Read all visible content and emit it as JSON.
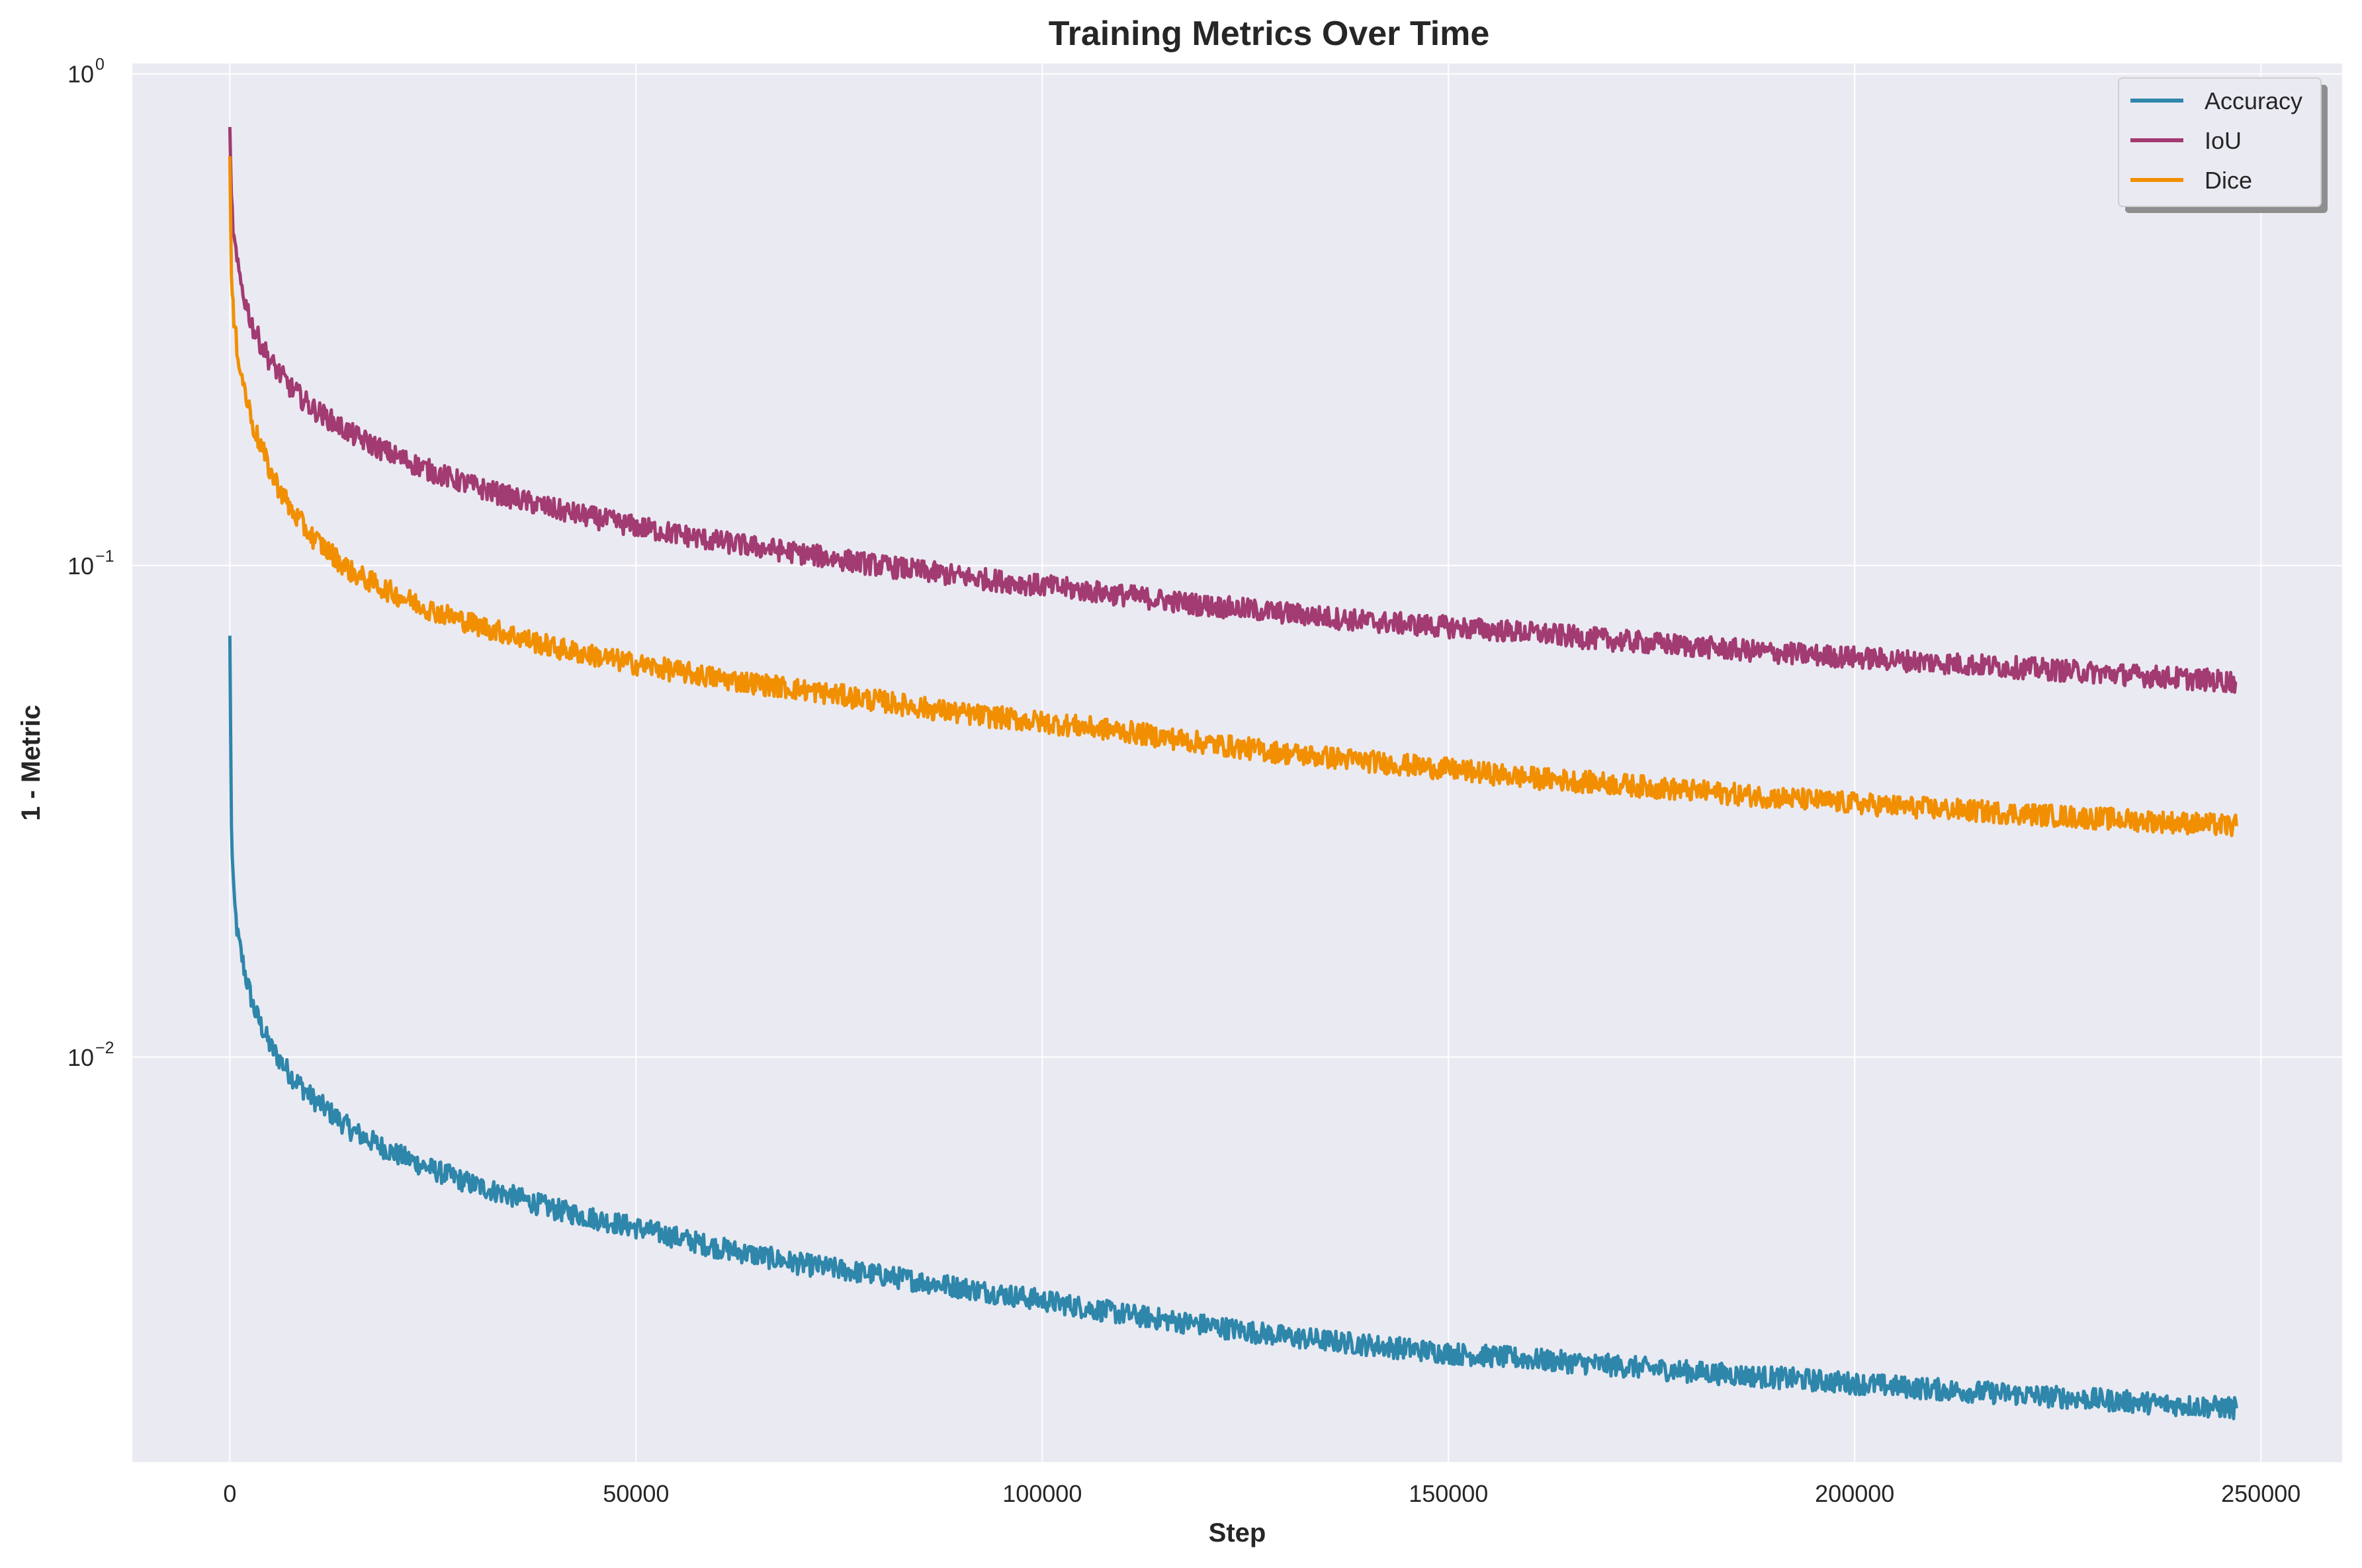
{
  "chart_data": {
    "type": "line",
    "title": "Training Metrics Over Time",
    "xlabel": "Step",
    "ylabel": "1 - Metric",
    "xlim": [
      -12000,
      260000
    ],
    "ylim": [
      0.0015,
      1.05
    ],
    "y_scale": "log",
    "grid": true,
    "legend_position": "top-right",
    "x_ticks": [
      {
        "value": 0,
        "label": "0"
      },
      {
        "value": 50000,
        "label": "50000"
      },
      {
        "value": 100000,
        "label": "100000"
      },
      {
        "value": 150000,
        "label": "150000"
      },
      {
        "value": 200000,
        "label": "200000"
      },
      {
        "value": 250000,
        "label": "250000"
      }
    ],
    "y_ticks": [
      {
        "value": 1,
        "base": "10",
        "exp": "0"
      },
      {
        "value": 0.1,
        "base": "10",
        "exp": "−1"
      },
      {
        "value": 0.01,
        "base": "10",
        "exp": "−2"
      }
    ],
    "series": [
      {
        "name": "Accuracy",
        "color": "#2E86AB",
        "x": [
          0,
          200,
          500,
          1000,
          2000,
          3000,
          5000,
          7500,
          10000,
          15000,
          20000,
          25000,
          30000,
          35000,
          40000,
          50000,
          60000,
          70000,
          80000,
          90000,
          100000,
          110000,
          120000,
          130000,
          140000,
          150000,
          160000,
          170000,
          180000,
          190000,
          200000,
          210000,
          220000,
          230000,
          240000,
          247000
        ],
        "y": [
          0.072,
          0.029,
          0.021,
          0.0175,
          0.0145,
          0.0125,
          0.0105,
          0.0092,
          0.0083,
          0.0071,
          0.0064,
          0.0059,
          0.0055,
          0.0052,
          0.0049,
          0.0045,
          0.0041,
          0.0038,
          0.0036,
          0.0034,
          0.0032,
          0.003,
          0.00285,
          0.0027,
          0.0026,
          0.0025,
          0.00243,
          0.00236,
          0.00229,
          0.00223,
          0.00217,
          0.00211,
          0.00206,
          0.00201,
          0.00196,
          0.00193
        ]
      },
      {
        "name": "IoU",
        "color": "#A23B72",
        "x": [
          0,
          200,
          500,
          1000,
          2000,
          3000,
          5000,
          7500,
          10000,
          15000,
          20000,
          25000,
          30000,
          35000,
          40000,
          50000,
          60000,
          70000,
          80000,
          90000,
          100000,
          110000,
          120000,
          130000,
          140000,
          150000,
          160000,
          170000,
          180000,
          190000,
          200000,
          210000,
          220000,
          230000,
          240000,
          247000
        ],
        "y": [
          0.78,
          0.55,
          0.46,
          0.4,
          0.34,
          0.3,
          0.26,
          0.23,
          0.21,
          0.185,
          0.168,
          0.155,
          0.145,
          0.137,
          0.13,
          0.12,
          0.112,
          0.106,
          0.1,
          0.095,
          0.091,
          0.087,
          0.083,
          0.08,
          0.077,
          0.075,
          0.073,
          0.0705,
          0.0685,
          0.0665,
          0.065,
          0.0635,
          0.062,
          0.0605,
          0.059,
          0.058
        ]
      },
      {
        "name": "Dice",
        "color": "#F18F01",
        "x": [
          0,
          200,
          500,
          1000,
          2000,
          3000,
          5000,
          7500,
          10000,
          15000,
          20000,
          25000,
          30000,
          35000,
          40000,
          50000,
          60000,
          70000,
          80000,
          90000,
          100000,
          110000,
          120000,
          130000,
          140000,
          150000,
          160000,
          170000,
          180000,
          190000,
          200000,
          210000,
          220000,
          230000,
          240000,
          247000
        ],
        "y": [
          0.68,
          0.38,
          0.31,
          0.27,
          0.22,
          0.19,
          0.155,
          0.13,
          0.115,
          0.097,
          0.088,
          0.081,
          0.076,
          0.072,
          0.068,
          0.063,
          0.059,
          0.056,
          0.053,
          0.05,
          0.048,
          0.046,
          0.0435,
          0.0415,
          0.04,
          0.0385,
          0.037,
          0.036,
          0.0348,
          0.0338,
          0.0328,
          0.032,
          0.0313,
          0.0306,
          0.03,
          0.0295
        ]
      }
    ]
  }
}
